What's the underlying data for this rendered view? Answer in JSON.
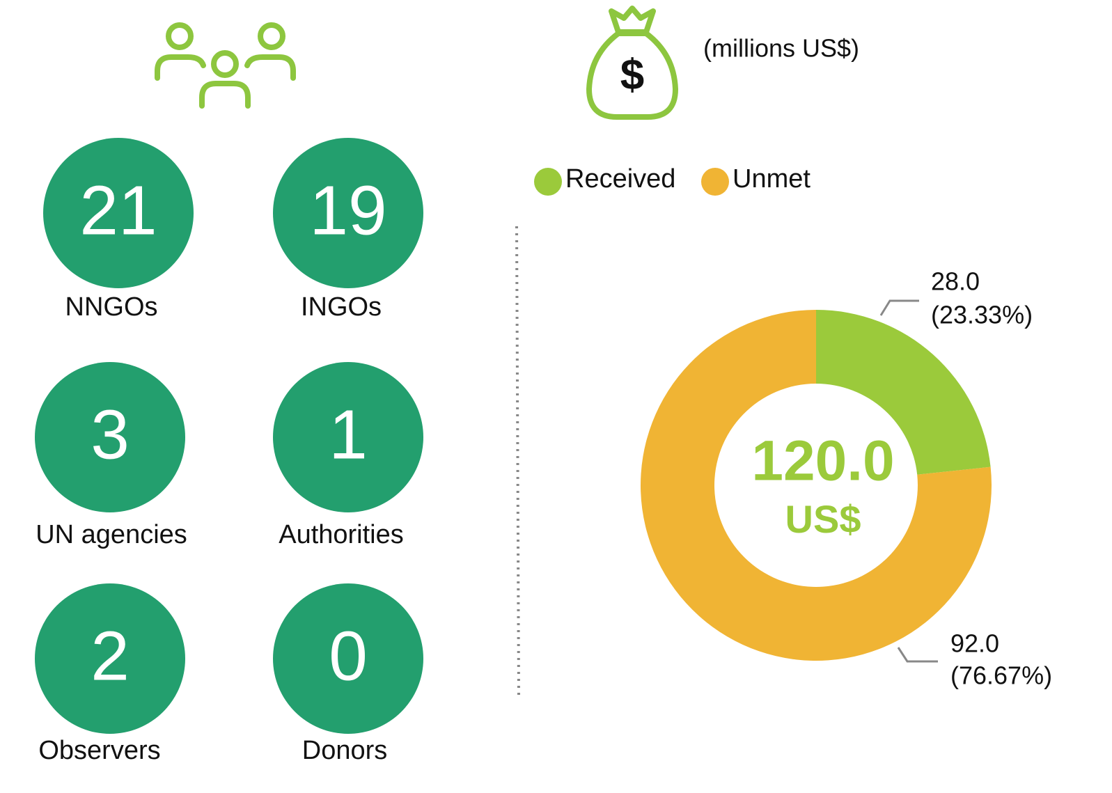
{
  "organizations": [
    {
      "value": 21,
      "label": "NNGOs"
    },
    {
      "value": 19,
      "label": "INGOs"
    },
    {
      "value": 3,
      "label": "UN agencies"
    },
    {
      "value": 1,
      "label": "Authorities"
    },
    {
      "value": 2,
      "label": "Observers"
    },
    {
      "value": 0,
      "label": "Donors"
    }
  ],
  "chart_data": {
    "type": "donut",
    "subtitle": "(millions US$)",
    "categories": [
      "Received",
      "Unmet"
    ],
    "values": [
      28,
      92
    ],
    "value_labels": [
      "28.0",
      "92.0"
    ],
    "percents": [
      23.33,
      76.67
    ],
    "percent_labels": [
      "(23.33%)",
      "(76.67%)"
    ],
    "colors": [
      "#9bca3b",
      "#f0b434"
    ],
    "total": 120,
    "total_label": "120.0",
    "total_unit": "US$"
  }
}
